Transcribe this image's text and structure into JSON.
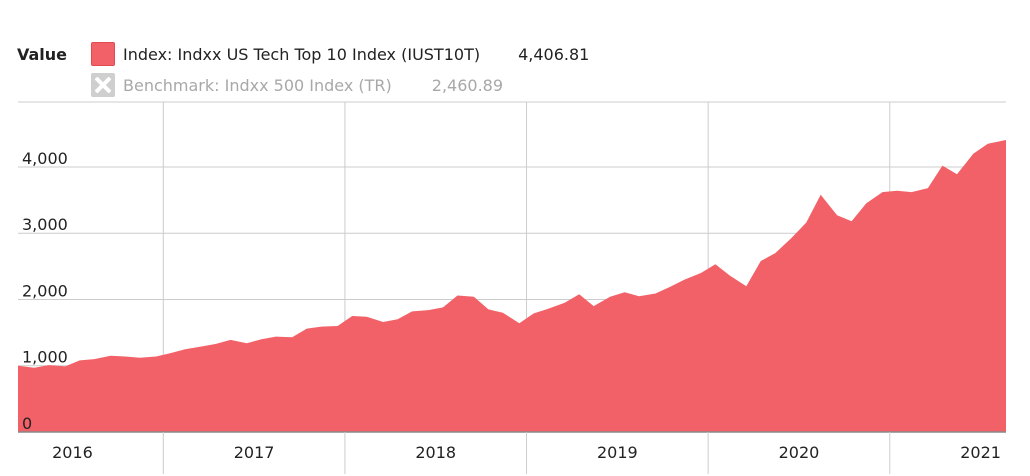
{
  "legend": {
    "title": "Value",
    "series": [
      {
        "name": "Index: Indxx US Tech Top 10 Index (IUST10T)",
        "value": "4,406.81",
        "active": true,
        "color": "#f26167"
      },
      {
        "name": "Benchmark: Indxx 500 Index (TR)",
        "value": "2,460.89",
        "active": false,
        "color": "#cfcfcf"
      }
    ]
  },
  "chart_data": {
    "type": "area",
    "title": "",
    "xlabel": "",
    "ylabel": "Value",
    "ylim": [
      0,
      5000
    ],
    "y_ticks": [
      0,
      1000,
      2000,
      3000,
      4000
    ],
    "y_tick_labels": [
      "0",
      "1,000",
      "2,000",
      "3,000",
      "4,000"
    ],
    "x_tick_labels": [
      "2016",
      "2017",
      "2018",
      "2019",
      "2020",
      "2021"
    ],
    "x_ticks": [
      2016.0,
      2017.0,
      2018.0,
      2019.0,
      2020.0,
      2021.0
    ],
    "xlim": [
      2015.7,
      2021.14
    ],
    "grid": true,
    "legend": "top-left",
    "series": [
      {
        "name": "Index: Indxx US Tech Top 10 Index (IUST10T)",
        "color": "#f26167",
        "x": [
          2015.7,
          2015.79,
          2015.87,
          2015.96,
          2016.04,
          2016.12,
          2016.21,
          2016.29,
          2016.37,
          2016.46,
          2016.54,
          2016.62,
          2016.71,
          2016.79,
          2016.87,
          2016.96,
          2017.04,
          2017.12,
          2017.21,
          2017.29,
          2017.37,
          2017.46,
          2017.54,
          2017.62,
          2017.71,
          2017.79,
          2017.87,
          2017.96,
          2018.04,
          2018.12,
          2018.21,
          2018.29,
          2018.37,
          2018.46,
          2018.54,
          2018.62,
          2018.71,
          2018.79,
          2018.87,
          2018.96,
          2019.04,
          2019.12,
          2019.21,
          2019.29,
          2019.37,
          2019.46,
          2019.54,
          2019.62,
          2019.71,
          2019.79,
          2019.87,
          2019.96,
          2020.04,
          2020.12,
          2020.21,
          2020.29,
          2020.37,
          2020.46,
          2020.54,
          2020.62,
          2020.71,
          2020.79,
          2020.87,
          2020.96,
          2021.04,
          2021.14
        ],
        "values": [
          1000,
          970,
          1010,
          990,
          1080,
          1100,
          1150,
          1140,
          1120,
          1140,
          1190,
          1250,
          1290,
          1330,
          1390,
          1340,
          1400,
          1440,
          1430,
          1560,
          1590,
          1600,
          1750,
          1740,
          1660,
          1700,
          1820,
          1840,
          1880,
          2060,
          2040,
          1850,
          1800,
          1640,
          1790,
          1860,
          1950,
          2080,
          1900,
          2040,
          2110,
          2050,
          2090,
          2190,
          2300,
          2400,
          2530,
          2360,
          2200,
          2580,
          2700,
          2930,
          3160,
          3580,
          3270,
          3180,
          3450,
          3620,
          3640,
          3620,
          3680,
          4020,
          3890,
          4200,
          4350,
          4406.81
        ]
      }
    ]
  }
}
